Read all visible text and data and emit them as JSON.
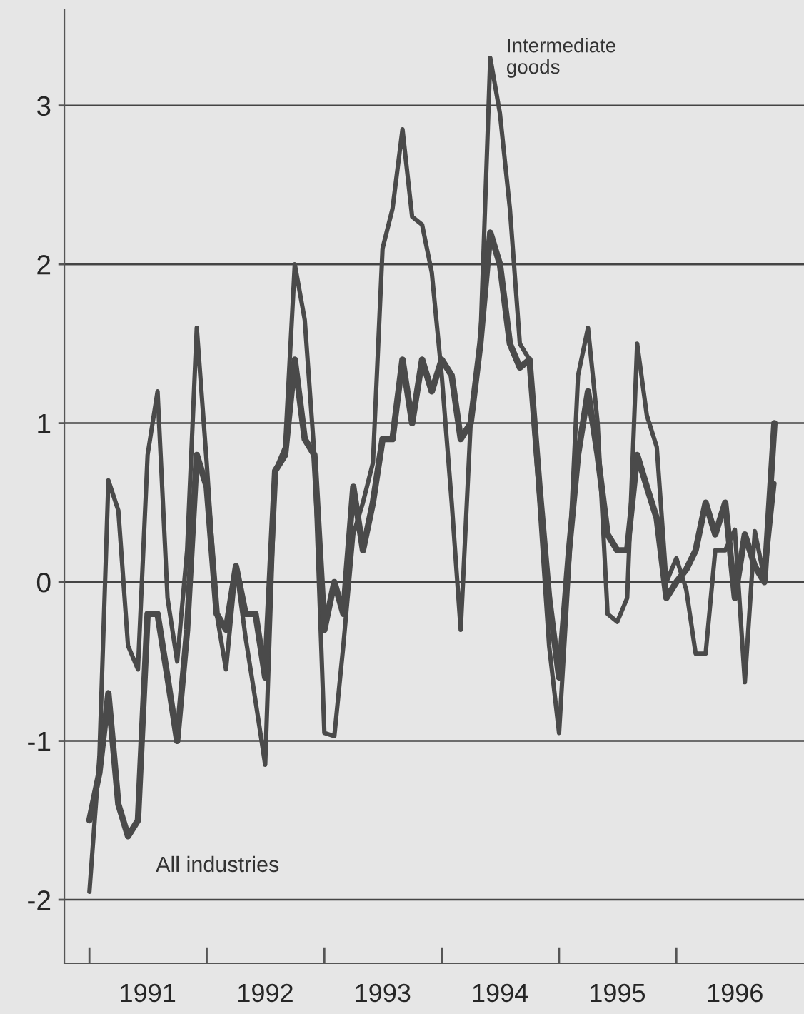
{
  "chart_data": {
    "type": "line",
    "x": [
      "1991-01",
      "1991-02",
      "1991-03",
      "1991-04",
      "1991-05",
      "1991-06",
      "1991-07",
      "1991-08",
      "1991-09",
      "1991-10",
      "1991-11",
      "1991-12",
      "1992-01",
      "1992-02",
      "1992-03",
      "1992-04",
      "1992-05",
      "1992-06",
      "1992-07",
      "1992-08",
      "1992-09",
      "1992-10",
      "1992-11",
      "1992-12",
      "1993-01",
      "1993-02",
      "1993-03",
      "1993-04",
      "1993-05",
      "1993-06",
      "1993-07",
      "1993-08",
      "1993-09",
      "1993-10",
      "1993-11",
      "1993-12",
      "1994-01",
      "1994-02",
      "1994-03",
      "1994-04",
      "1994-05",
      "1994-06",
      "1994-07",
      "1994-08",
      "1994-09",
      "1994-10",
      "1994-11",
      "1994-12",
      "1995-01",
      "1995-02",
      "1995-03",
      "1995-04",
      "1995-05",
      "1995-06",
      "1995-07",
      "1995-08",
      "1995-09",
      "1995-10",
      "1995-11",
      "1995-12",
      "1996-01",
      "1996-02",
      "1996-03",
      "1996-04",
      "1996-05",
      "1996-06",
      "1996-07",
      "1996-08",
      "1996-09",
      "1996-10",
      "1996-11"
    ],
    "series": [
      {
        "name": "Intermediate goods",
        "color": "#4a4a4a",
        "values": [
          -1.95,
          -1.1,
          0.64,
          0.45,
          -0.4,
          -0.55,
          0.8,
          1.2,
          -0.1,
          -0.5,
          0.2,
          1.6,
          0.75,
          -0.2,
          -0.55,
          0.1,
          -0.35,
          -0.75,
          -1.15,
          0.7,
          0.85,
          2.0,
          1.65,
          0.8,
          -0.95,
          -0.97,
          -0.4,
          0.3,
          0.5,
          0.75,
          2.1,
          2.35,
          2.85,
          2.3,
          2.25,
          1.95,
          1.3,
          0.5,
          -0.3,
          1.0,
          1.5,
          3.3,
          2.95,
          2.35,
          1.5,
          1.4,
          0.5,
          -0.4,
          -0.95,
          0.1,
          1.3,
          1.6,
          1.0,
          -0.2,
          -0.25,
          -0.1,
          1.5,
          1.05,
          0.85,
          0.0,
          0.15,
          -0.05,
          -0.45,
          -0.45,
          0.2,
          0.2,
          0.33,
          -0.63,
          0.32,
          0.02,
          0.62
        ]
      },
      {
        "name": "All industries",
        "color": "#4a4a4a",
        "values": [
          -1.5,
          -1.2,
          -0.7,
          -1.4,
          -1.6,
          -1.5,
          -0.2,
          -0.2,
          -0.6,
          -1.0,
          -0.3,
          0.8,
          0.6,
          -0.2,
          -0.3,
          0.1,
          -0.2,
          -0.2,
          -0.6,
          0.7,
          0.8,
          1.4,
          0.9,
          0.8,
          -0.3,
          0.0,
          -0.2,
          0.6,
          0.2,
          0.5,
          0.9,
          0.9,
          1.4,
          1.0,
          1.4,
          1.2,
          1.4,
          1.3,
          0.9,
          1.0,
          1.5,
          2.2,
          2.0,
          1.5,
          1.35,
          1.4,
          0.6,
          -0.1,
          -0.6,
          0.2,
          0.8,
          1.2,
          0.8,
          0.3,
          0.2,
          0.2,
          0.8,
          0.6,
          0.4,
          -0.1,
          0.0,
          0.08,
          0.2,
          0.5,
          0.3,
          0.5,
          -0.1,
          0.3,
          0.1,
          0.0,
          1.0
        ]
      }
    ],
    "xlim": [
      "1990-10-15",
      "1997-02-01"
    ],
    "xticks": [
      {
        "value": "1991-01-01",
        "label": null
      },
      {
        "value": "1991-07-01",
        "label": "1991"
      },
      {
        "value": "1992-01-01",
        "label": null
      },
      {
        "value": "1992-07-01",
        "label": "1992"
      },
      {
        "value": "1993-01-01",
        "label": null
      },
      {
        "value": "1993-07-01",
        "label": "1993"
      },
      {
        "value": "1994-01-01",
        "label": null
      },
      {
        "value": "1994-07-01",
        "label": "1994"
      },
      {
        "value": "1995-01-01",
        "label": null
      },
      {
        "value": "1995-07-01",
        "label": "1995"
      },
      {
        "value": "1996-01-01",
        "label": null
      },
      {
        "value": "1996-07-01",
        "label": "1996"
      }
    ],
    "ylim": [
      -2.4,
      3.6
    ],
    "yticks": [
      -2,
      -1,
      0,
      1,
      2,
      3
    ],
    "grid": "y",
    "legend": false,
    "line_style": "solid",
    "marker": "none"
  }
}
